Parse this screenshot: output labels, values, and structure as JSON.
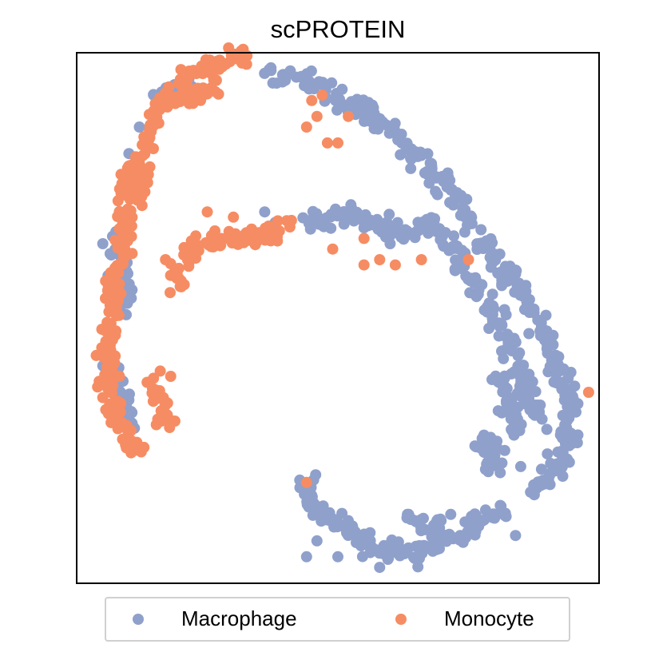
{
  "chart_data": {
    "type": "scatter",
    "title": "scPROTEIN",
    "xlabel": "",
    "ylabel": "",
    "xlim": [
      0,
      1
    ],
    "ylim": [
      0,
      1
    ],
    "grid": false,
    "ticks": false,
    "legend": {
      "position": "bottom",
      "columns": 2
    },
    "series": [
      {
        "name": "Macrophage",
        "color": "#8fa0cb",
        "paths": [
          [
            [
              0.37,
              0.97
            ],
            [
              0.45,
              0.94
            ],
            [
              0.53,
              0.9
            ],
            [
              0.6,
              0.86
            ],
            [
              0.66,
              0.8
            ],
            [
              0.71,
              0.74
            ],
            [
              0.76,
              0.67
            ],
            [
              0.81,
              0.6
            ],
            [
              0.86,
              0.53
            ],
            [
              0.9,
              0.45
            ],
            [
              0.93,
              0.38
            ],
            [
              0.95,
              0.32
            ],
            [
              0.94,
              0.27
            ],
            [
              0.91,
              0.2
            ],
            [
              0.87,
              0.17
            ]
          ],
          [
            [
              0.43,
              0.68
            ],
            [
              0.5,
              0.7
            ],
            [
              0.57,
              0.68
            ],
            [
              0.63,
              0.66
            ],
            [
              0.68,
              0.68
            ],
            [
              0.71,
              0.64
            ]
          ],
          [
            [
              0.72,
              0.64
            ],
            [
              0.74,
              0.59
            ],
            [
              0.77,
              0.56
            ],
            [
              0.8,
              0.5
            ],
            [
              0.83,
              0.44
            ],
            [
              0.86,
              0.38
            ],
            [
              0.88,
              0.31
            ]
          ],
          [
            [
              0.81,
              0.39
            ],
            [
              0.83,
              0.34
            ],
            [
              0.84,
              0.28
            ]
          ],
          [
            [
              0.76,
              0.25
            ],
            [
              0.78,
              0.27
            ],
            [
              0.8,
              0.25
            ],
            [
              0.8,
              0.2
            ]
          ],
          [
            [
              0.43,
              0.2
            ],
            [
              0.45,
              0.16
            ],
            [
              0.48,
              0.13
            ],
            [
              0.52,
              0.1
            ],
            [
              0.56,
              0.07
            ],
            [
              0.6,
              0.06
            ],
            [
              0.64,
              0.05
            ],
            [
              0.68,
              0.07
            ],
            [
              0.73,
              0.09
            ],
            [
              0.78,
              0.12
            ],
            [
              0.82,
              0.13
            ]
          ],
          [
            [
              0.62,
              0.13
            ],
            [
              0.66,
              0.11
            ],
            [
              0.7,
              0.12
            ]
          ],
          [
            [
              0.14,
              0.9
            ],
            [
              0.18,
              0.93
            ],
            [
              0.22,
              0.94
            ]
          ],
          [
            [
              0.08,
              0.65
            ],
            [
              0.09,
              0.58
            ],
            [
              0.08,
              0.5
            ]
          ],
          [
            [
              0.07,
              0.4
            ],
            [
              0.09,
              0.35
            ],
            [
              0.1,
              0.3
            ]
          ]
        ],
        "extra_points": [
          [
            0.05,
            0.64
          ],
          [
            0.06,
            0.58
          ],
          [
            0.05,
            0.41
          ],
          [
            0.09,
            0.74
          ],
          [
            0.1,
            0.81
          ],
          [
            0.12,
            0.86
          ],
          [
            0.38,
            0.68
          ],
          [
            0.36,
            0.7
          ],
          [
            0.55,
            0.67
          ],
          [
            0.6,
            0.64
          ],
          [
            0.92,
            0.41
          ],
          [
            0.9,
            0.29
          ],
          [
            0.85,
            0.22
          ],
          [
            0.58,
            0.03
          ],
          [
            0.5,
            0.05
          ],
          [
            0.46,
            0.08
          ],
          [
            0.44,
            0.05
          ],
          [
            0.84,
            0.09
          ]
        ]
      },
      {
        "name": "Monocyte",
        "color": "#f68c63",
        "paths": [
          [
            [
              0.15,
              0.86
            ],
            [
              0.13,
              0.82
            ],
            [
              0.12,
              0.77
            ],
            [
              0.1,
              0.72
            ],
            [
              0.09,
              0.66
            ],
            [
              0.08,
              0.6
            ],
            [
              0.07,
              0.54
            ],
            [
              0.07,
              0.48
            ],
            [
              0.06,
              0.42
            ],
            [
              0.06,
              0.36
            ],
            [
              0.08,
              0.3
            ],
            [
              0.12,
              0.24
            ]
          ],
          [
            [
              0.18,
              0.92
            ],
            [
              0.22,
              0.96
            ],
            [
              0.26,
              0.98
            ],
            [
              0.3,
              0.99
            ],
            [
              0.33,
              0.99
            ]
          ],
          [
            [
              0.14,
              0.86
            ],
            [
              0.16,
              0.9
            ],
            [
              0.2,
              0.92
            ],
            [
              0.23,
              0.91
            ],
            [
              0.27,
              0.94
            ]
          ],
          [
            [
              0.19,
              0.56
            ],
            [
              0.21,
              0.62
            ],
            [
              0.25,
              0.64
            ],
            [
              0.29,
              0.65
            ],
            [
              0.33,
              0.65
            ],
            [
              0.37,
              0.66
            ],
            [
              0.41,
              0.68
            ]
          ],
          [
            [
              0.14,
              0.38
            ],
            [
              0.16,
              0.34
            ],
            [
              0.17,
              0.3
            ]
          ],
          [
            [
              0.09,
              0.75
            ],
            [
              0.11,
              0.79
            ],
            [
              0.13,
              0.72
            ]
          ]
        ],
        "extra_points": [
          [
            0.44,
            0.86
          ],
          [
            0.46,
            0.88
          ],
          [
            0.48,
            0.83
          ],
          [
            0.52,
            0.88
          ],
          [
            0.5,
            0.83
          ],
          [
            0.45,
            0.91
          ],
          [
            0.47,
            0.92
          ],
          [
            0.49,
            0.63
          ],
          [
            0.55,
            0.6
          ],
          [
            0.58,
            0.61
          ],
          [
            0.61,
            0.6
          ],
          [
            0.66,
            0.61
          ],
          [
            0.55,
            0.65
          ],
          [
            0.75,
            0.61
          ],
          [
            0.98,
            0.36
          ],
          [
            0.44,
            0.19
          ],
          [
            0.25,
            0.7
          ],
          [
            0.3,
            0.69
          ],
          [
            0.17,
            0.61
          ],
          [
            0.2,
            0.57
          ],
          [
            0.04,
            0.37
          ],
          [
            0.05,
            0.35
          ],
          [
            0.16,
            0.4
          ],
          [
            0.18,
            0.39
          ]
        ]
      }
    ]
  }
}
